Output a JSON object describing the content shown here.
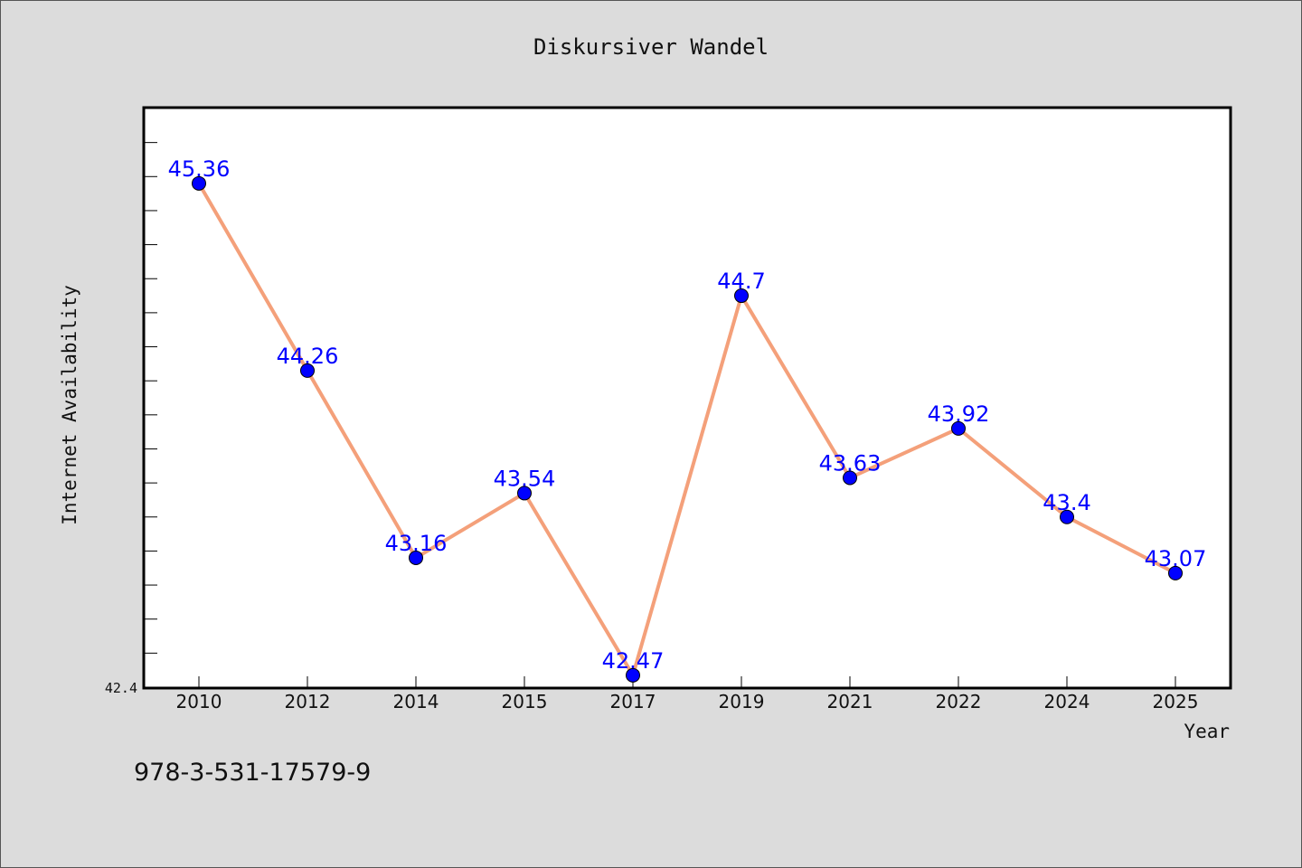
{
  "chart_data": {
    "type": "line",
    "title": "Diskursiver Wandel",
    "xlabel": "Year",
    "ylabel": "Internet Availability",
    "categories": [
      "2010",
      "2012",
      "2014",
      "2015",
      "2017",
      "2019",
      "2021",
      "2022",
      "2024",
      "2025"
    ],
    "series": [
      {
        "values": [
          45.36,
          44.26,
          43.16,
          43.54,
          42.47,
          44.7,
          43.63,
          43.92,
          43.4,
          43.07
        ],
        "labels": [
          "45.36",
          "44.26",
          "43.16",
          "43.54",
          "42.47",
          "44.7",
          "43.63",
          "43.92",
          "43.4",
          "43.07"
        ]
      }
    ],
    "ylim": [
      42.4,
      45.8
    ],
    "y_tick_labels": [
      "42.4"
    ],
    "grid": false,
    "legend": "none",
    "colors": {
      "line": "#f4a07a",
      "marker": "#0000ff",
      "data_label": "#0000ff",
      "plot_background": "#ffffff",
      "page_background": "#dcdcdc"
    }
  },
  "footer": {
    "text": "978-3-531-17579-9"
  }
}
